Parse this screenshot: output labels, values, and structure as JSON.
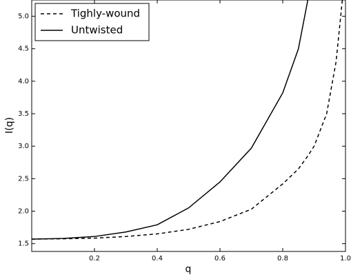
{
  "chart_data": {
    "type": "line",
    "x_label": "q",
    "y_label": "I(q)",
    "x": [
      0,
      0.1,
      0.2,
      0.3,
      0.4,
      0.5,
      0.6,
      0.7,
      0.8,
      0.85,
      0.88,
      0.9,
      0.94,
      0.97,
      0.99
    ],
    "series": [
      {
        "name": "Tighly-wound",
        "color": "#000000",
        "linestyle": "dashed",
        "values": [
          1.57,
          1.575,
          1.585,
          1.61,
          1.65,
          1.72,
          1.84,
          2.03,
          2.42,
          2.65,
          2.85,
          3.0,
          3.5,
          4.3,
          5.25
        ]
      },
      {
        "name": "Untwisted",
        "color": "#000000",
        "linestyle": "solid",
        "values": [
          1.57,
          1.58,
          1.61,
          1.68,
          1.79,
          2.05,
          2.45,
          2.97,
          3.82,
          4.5,
          5.25,
          null,
          null,
          null,
          null
        ]
      }
    ],
    "xlim": [
      0,
      1.0
    ],
    "ylim": [
      1.38,
      5.25
    ],
    "xticks": [
      0.2,
      0.4,
      0.6,
      0.8,
      {
        "value": 1.0,
        "label": "1.0"
      }
    ],
    "yticks": [
      1.5,
      {
        "value": 2.0,
        "label": "2.0"
      },
      2.5,
      {
        "value": 3.0,
        "label": "3.0"
      },
      3.5,
      {
        "value": 4.0,
        "label": "4.0"
      },
      4.5,
      {
        "value": 5.0,
        "label": "5.0"
      }
    ],
    "legend": "upper left"
  }
}
